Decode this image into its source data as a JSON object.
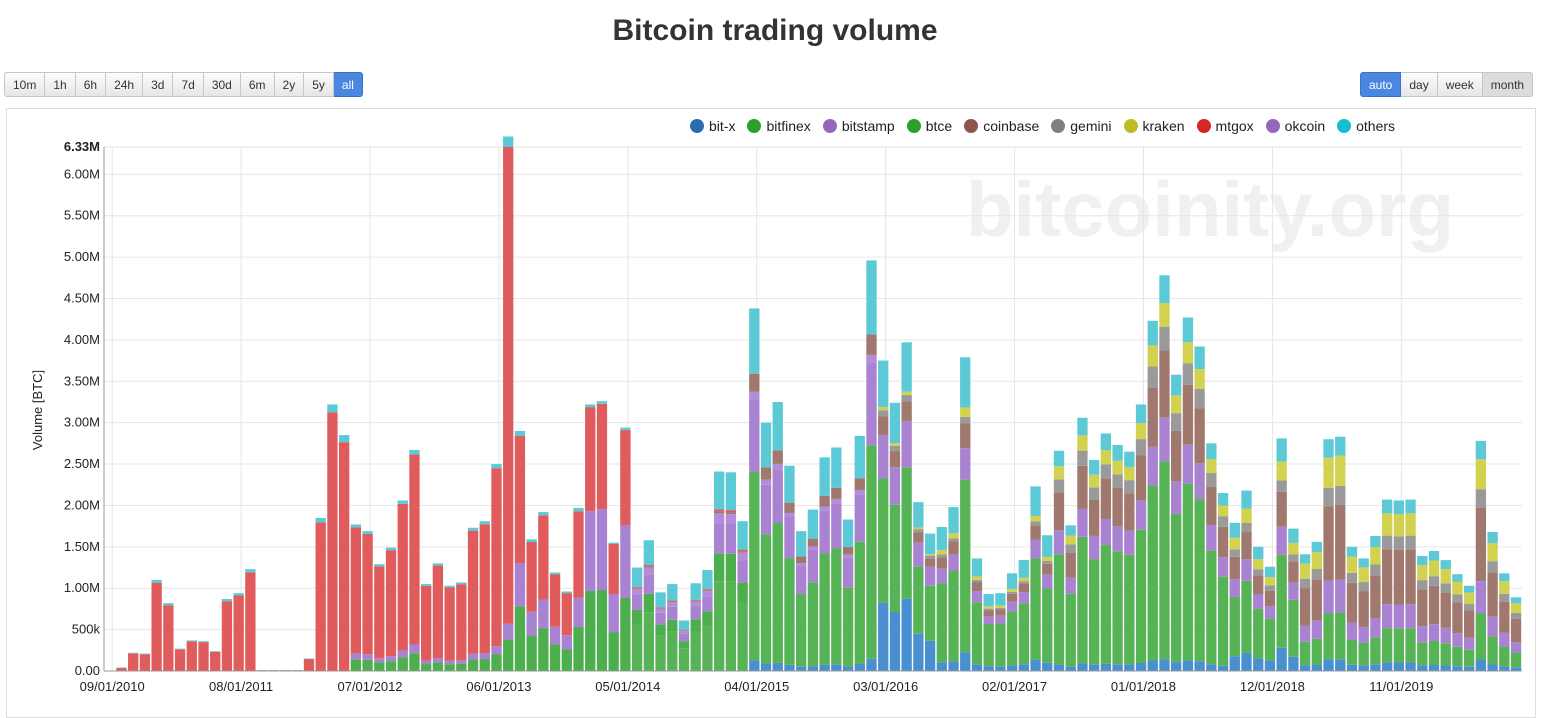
{
  "page": {
    "title": "Bitcoin trading volume",
    "watermark": "bitcoinity.org"
  },
  "timeframe_buttons": [
    {
      "label": "10m",
      "active": false
    },
    {
      "label": "1h",
      "active": false
    },
    {
      "label": "6h",
      "active": false
    },
    {
      "label": "24h",
      "active": false
    },
    {
      "label": "3d",
      "active": false
    },
    {
      "label": "7d",
      "active": false
    },
    {
      "label": "30d",
      "active": false
    },
    {
      "label": "6m",
      "active": false
    },
    {
      "label": "2y",
      "active": false
    },
    {
      "label": "5y",
      "active": false
    },
    {
      "label": "all",
      "active": true
    }
  ],
  "group_buttons": [
    {
      "label": "auto",
      "active": true
    },
    {
      "label": "day",
      "active": false
    },
    {
      "label": "week",
      "active": false
    },
    {
      "label": "month",
      "active": false,
      "pressed": true
    }
  ],
  "legend": [
    {
      "name": "bit-x",
      "color": "#2b6cb0"
    },
    {
      "name": "bitfinex",
      "color": "#2ca02c"
    },
    {
      "name": "bitstamp",
      "color": "#9467bd"
    },
    {
      "name": "btce",
      "color": "#2ca02c"
    },
    {
      "name": "coinbase",
      "color": "#8c564b"
    },
    {
      "name": "gemini",
      "color": "#7f7f7f"
    },
    {
      "name": "kraken",
      "color": "#bcbd22"
    },
    {
      "name": "mtgox",
      "color": "#d62728"
    },
    {
      "name": "okcoin",
      "color": "#9467bd"
    },
    {
      "name": "others",
      "color": "#17becf"
    }
  ],
  "chart_data": {
    "type": "bar",
    "stacked": true,
    "title": "Bitcoin trading volume",
    "ylabel": "Volume [BTC]",
    "xlabel": "",
    "ylim": [
      0,
      6330000
    ],
    "y_ticks": [
      {
        "value": 0,
        "label": "0.00"
      },
      {
        "value": 500000,
        "label": "500k"
      },
      {
        "value": 1000000,
        "label": "1.00M"
      },
      {
        "value": 1500000,
        "label": "1.50M"
      },
      {
        "value": 2000000,
        "label": "2.00M"
      },
      {
        "value": 2500000,
        "label": "2.50M"
      },
      {
        "value": 3000000,
        "label": "3.00M"
      },
      {
        "value": 3500000,
        "label": "3.50M"
      },
      {
        "value": 4000000,
        "label": "4.00M"
      },
      {
        "value": 4500000,
        "label": "4.50M"
      },
      {
        "value": 5000000,
        "label": "5.00M"
      },
      {
        "value": 5500000,
        "label": "5.50M"
      },
      {
        "value": 6000000,
        "label": "6.00M"
      },
      {
        "value": 6330000,
        "label": "6.33M"
      }
    ],
    "x_ticks": [
      {
        "index": 0,
        "label": "09/01/2010"
      },
      {
        "index": 11,
        "label": "08/01/2011"
      },
      {
        "index": 22,
        "label": "07/01/2012"
      },
      {
        "index": 33,
        "label": "06/01/2013"
      },
      {
        "index": 44,
        "label": "05/01/2014"
      },
      {
        "index": 55,
        "label": "04/01/2015"
      },
      {
        "index": 66,
        "label": "03/01/2016"
      },
      {
        "index": 77,
        "label": "02/01/2017"
      },
      {
        "index": 88,
        "label": "01/01/2018"
      },
      {
        "index": 99,
        "label": "12/01/2018"
      },
      {
        "index": 110,
        "label": "11/01/2019"
      }
    ],
    "first_bar_offset": 1,
    "series_order": [
      "bit-x",
      "bitfinex",
      "btce",
      "bitstamp",
      "okcoin",
      "coinbase",
      "gemini",
      "kraken",
      "mtgox",
      "others"
    ],
    "series_colors": {
      "bit-x": "#4a90d0",
      "bitfinex": "#56b456",
      "btce": "#4cae4c",
      "bitstamp": "#aa82d2",
      "okcoin": "#b48cdc",
      "coinbase": "#a0786e",
      "gemini": "#9a9a9a",
      "kraken": "#d2d250",
      "mtgox": "#e05c5c",
      "others": "#5ccad6"
    },
    "totals": [
      40000,
      220000,
      210000,
      1100000,
      820000,
      270000,
      370000,
      360000,
      240000,
      870000,
      940000,
      1230000,
      10000,
      10000,
      10000,
      10000,
      150000,
      1850000,
      3220000,
      2850000,
      1770000,
      1690000,
      1290000,
      1490000,
      2060000,
      2670000,
      1050000,
      1300000,
      1030000,
      1070000,
      1730000,
      1810000,
      2500000,
      6330000,
      2900000,
      1590000,
      1920000,
      1190000,
      960000,
      1970000,
      3220000,
      3260000,
      1550000,
      2940000,
      1250000,
      1580000,
      950000,
      1050000,
      610000,
      1060000,
      1220000,
      2410000,
      2400000,
      1810000,
      4380000,
      3000000,
      3250000,
      2480000,
      1690000,
      1950000,
      2580000,
      2700000,
      1830000,
      2840000,
      4960000,
      3750000,
      3240000,
      3970000,
      2040000,
      1660000,
      1740000,
      1980000,
      3790000,
      1360000,
      930000,
      940000,
      1180000,
      1340000,
      2230000,
      1640000,
      2660000,
      1760000,
      3060000,
      2550000,
      2870000,
      2730000,
      2650000,
      3220000,
      4230000,
      4780000,
      3580000,
      4270000,
      3920000,
      2750000,
      2150000,
      1790000,
      2180000,
      1500000,
      1260000,
      2810000,
      1720000,
      1410000,
      1560000,
      2800000,
      2830000,
      1500000,
      1360000,
      1630000,
      2070000,
      2060000,
      2070000,
      1390000,
      1450000,
      1340000,
      1170000,
      1030000,
      2780000,
      1680000,
      1180000,
      890000
    ],
    "shares": [
      {
        "from": 0,
        "to": 19,
        "mix": {
          "mtgox": 0.97,
          "others": 0.03
        }
      },
      {
        "from": 20,
        "to": 32,
        "mix": {
          "btce": 0.08,
          "bitstamp": 0.04,
          "mtgox": 0.86,
          "others": 0.02
        }
      },
      {
        "from": 33,
        "to": 33,
        "mix": {
          "btce": 0.06,
          "bitstamp": 0.03,
          "mtgox": 0.91,
          "others": 0.02
        }
      },
      {
        "from": 34,
        "to": 39,
        "mix": {
          "btce": 0.27,
          "bitstamp": 0.18,
          "mtgox": 0.53,
          "others": 0.02
        }
      },
      {
        "from": 40,
        "to": 43,
        "mix": {
          "btce": 0.3,
          "bitstamp": 0.3,
          "mtgox": 0.39,
          "others": 0.01
        }
      },
      {
        "from": 44,
        "to": 53,
        "mix": {
          "bitfinex": 0.45,
          "btce": 0.14,
          "bitstamp": 0.15,
          "okcoin": 0.05,
          "coinbase": 0.01,
          "mtgox": 0.01,
          "others": 0.19
        }
      },
      {
        "from": 54,
        "to": 64,
        "mix": {
          "bit-x": 0.03,
          "bitfinex": 0.52,
          "bitstamp": 0.2,
          "okcoin": 0.02,
          "coinbase": 0.05,
          "others": 0.18
        }
      },
      {
        "from": 65,
        "to": 69,
        "mix": {
          "bit-x": 0.22,
          "bitfinex": 0.4,
          "bitstamp": 0.14,
          "coinbase": 0.06,
          "gemini": 0.02,
          "kraken": 0.01,
          "others": 0.15
        }
      },
      {
        "from": 70,
        "to": 79,
        "mix": {
          "bit-x": 0.06,
          "bitfinex": 0.55,
          "bitstamp": 0.1,
          "coinbase": 0.08,
          "gemini": 0.02,
          "kraken": 0.03,
          "others": 0.16
        }
      },
      {
        "from": 80,
        "to": 94,
        "mix": {
          "bit-x": 0.03,
          "bitfinex": 0.5,
          "bitstamp": 0.11,
          "coinbase": 0.17,
          "gemini": 0.06,
          "kraken": 0.06,
          "others": 0.07
        }
      },
      {
        "from": 95,
        "to": 100,
        "mix": {
          "bit-x": 0.1,
          "bitfinex": 0.4,
          "bitstamp": 0.12,
          "coinbase": 0.15,
          "gemini": 0.05,
          "kraken": 0.08,
          "others": 0.1
        }
      },
      {
        "from": 101,
        "to": 119,
        "mix": {
          "bit-x": 0.05,
          "bitfinex": 0.2,
          "bitstamp": 0.14,
          "coinbase": 0.32,
          "gemini": 0.08,
          "kraken": 0.13,
          "others": 0.08
        }
      }
    ]
  }
}
